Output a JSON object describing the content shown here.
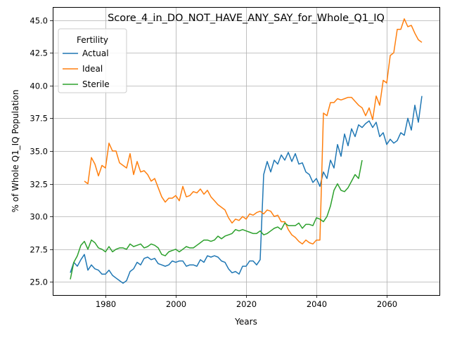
{
  "chart_data": {
    "type": "line",
    "title": "Score_4_in_DO_NOT_HAVE_ANY_SAY_for_Whole_Q1_IQ",
    "xlabel": "Years",
    "ylabel": "% of Whole Q1_IQ Population",
    "xlim": [
      1965,
      2075
    ],
    "ylim": [
      24.0,
      46.0
    ],
    "xticks": [
      1980,
      2000,
      2020,
      2040,
      2060
    ],
    "yticks": [
      25.0,
      27.5,
      30.0,
      32.5,
      35.0,
      37.5,
      40.0,
      42.5,
      45.0
    ],
    "grid": true,
    "legend": {
      "title": "Fertility",
      "location": "upper-left"
    },
    "series": [
      {
        "name": "Actual",
        "color": "#1f77b4",
        "x": [
          1970,
          1971,
          1972,
          1973,
          1974,
          1975,
          1976,
          1977,
          1978,
          1979,
          1980,
          1981,
          1982,
          1983,
          1984,
          1985,
          1986,
          1987,
          1988,
          1989,
          1990,
          1991,
          1992,
          1993,
          1994,
          1995,
          1996,
          1997,
          1998,
          1999,
          2000,
          2001,
          2002,
          2003,
          2004,
          2005,
          2006,
          2007,
          2008,
          2009,
          2010,
          2011,
          2012,
          2013,
          2014,
          2015,
          2016,
          2017,
          2018,
          2019,
          2020,
          2021,
          2022,
          2023,
          2024,
          2025,
          2026,
          2027,
          2028,
          2029,
          2030,
          2031,
          2032,
          2033,
          2034,
          2035,
          2036,
          2037,
          2038,
          2039,
          2040,
          2041,
          2042,
          2043,
          2044,
          2045,
          2046,
          2047,
          2048,
          2049,
          2050,
          2051,
          2052,
          2053,
          2054,
          2055,
          2056,
          2057,
          2058,
          2059,
          2060,
          2061,
          2062,
          2063,
          2064,
          2065,
          2066,
          2067,
          2068,
          2069,
          2070
        ],
        "values": [
          25.7,
          26.5,
          26.2,
          26.7,
          27.1,
          25.9,
          26.3,
          26.0,
          25.9,
          25.6,
          25.6,
          25.9,
          25.5,
          25.3,
          25.1,
          24.9,
          25.1,
          25.8,
          26.0,
          26.5,
          26.3,
          26.8,
          26.9,
          26.7,
          26.8,
          26.4,
          26.3,
          26.2,
          26.3,
          26.6,
          26.5,
          26.6,
          26.6,
          26.2,
          26.3,
          26.3,
          26.2,
          26.7,
          26.5,
          27.0,
          26.9,
          27.0,
          26.9,
          26.6,
          26.5,
          26.0,
          25.7,
          25.8,
          25.6,
          26.2,
          26.2,
          26.6,
          26.6,
          26.3,
          26.7,
          33.2,
          34.2,
          33.4,
          34.3,
          34.0,
          34.7,
          34.3,
          34.9,
          34.2,
          34.8,
          34.0,
          34.1,
          33.4,
          33.2,
          32.6,
          32.9,
          32.3,
          33.4,
          32.9,
          34.3,
          33.7,
          35.5,
          34.6,
          36.3,
          35.4,
          36.7,
          36.1,
          37.0,
          36.8,
          37.1,
          37.3,
          36.8,
          37.2,
          36.1,
          36.4,
          35.5,
          35.9,
          35.6,
          35.8,
          36.4,
          36.2,
          37.5,
          36.6,
          38.5,
          37.2,
          39.2
        ]
      },
      {
        "name": "Ideal",
        "color": "#ff7f0e",
        "x": [
          1974,
          1975,
          1976,
          1977,
          1978,
          1979,
          1980,
          1981,
          1982,
          1983,
          1984,
          1985,
          1986,
          1987,
          1988,
          1989,
          1990,
          1991,
          1992,
          1993,
          1994,
          1995,
          1996,
          1997,
          1998,
          1999,
          2000,
          2001,
          2002,
          2003,
          2004,
          2005,
          2006,
          2007,
          2008,
          2009,
          2010,
          2011,
          2012,
          2013,
          2014,
          2015,
          2016,
          2017,
          2018,
          2019,
          2020,
          2021,
          2022,
          2023,
          2024,
          2025,
          2026,
          2027,
          2028,
          2029,
          2030,
          2031,
          2032,
          2033,
          2034,
          2035,
          2036,
          2037,
          2038,
          2039,
          2040,
          2041,
          2042,
          2043,
          2044,
          2045,
          2046,
          2047,
          2048,
          2049,
          2050,
          2051,
          2052,
          2053,
          2054,
          2055,
          2056,
          2057,
          2058,
          2059,
          2060,
          2061,
          2062,
          2063,
          2064,
          2065,
          2066,
          2067,
          2068,
          2069,
          2070
        ],
        "values": [
          32.7,
          32.5,
          34.5,
          34.0,
          33.1,
          33.9,
          33.7,
          35.6,
          35.0,
          35.0,
          34.1,
          33.9,
          33.7,
          34.8,
          33.2,
          34.2,
          33.4,
          33.5,
          33.2,
          32.7,
          32.9,
          32.2,
          31.5,
          31.1,
          31.4,
          31.4,
          31.6,
          31.2,
          32.3,
          31.5,
          31.6,
          31.9,
          31.8,
          32.1,
          31.7,
          32.0,
          31.5,
          31.2,
          30.9,
          30.7,
          30.5,
          29.9,
          29.5,
          29.8,
          29.7,
          30.0,
          29.8,
          30.2,
          30.1,
          30.3,
          30.4,
          30.2,
          30.5,
          30.4,
          30.0,
          30.1,
          29.6,
          29.6,
          29.0,
          28.6,
          28.4,
          28.1,
          27.9,
          28.2,
          28.0,
          27.9,
          28.2,
          28.2,
          37.9,
          37.7,
          38.7,
          38.7,
          39.0,
          38.9,
          39.0,
          39.1,
          39.1,
          38.8,
          38.5,
          38.3,
          37.7,
          38.3,
          37.4,
          39.2,
          38.5,
          40.4,
          40.2,
          42.3,
          42.5,
          44.3,
          44.3,
          45.1,
          44.5,
          44.6,
          44.0,
          43.5,
          43.3
        ]
      },
      {
        "name": "Sterile",
        "color": "#2ca02c",
        "x": [
          1970,
          1971,
          1972,
          1973,
          1974,
          1975,
          1976,
          1977,
          1978,
          1979,
          1980,
          1981,
          1982,
          1983,
          1984,
          1985,
          1986,
          1987,
          1988,
          1989,
          1990,
          1991,
          1992,
          1993,
          1994,
          1995,
          1996,
          1997,
          1998,
          1999,
          2000,
          2001,
          2002,
          2003,
          2004,
          2005,
          2006,
          2007,
          2008,
          2009,
          2010,
          2011,
          2012,
          2013,
          2014,
          2015,
          2016,
          2017,
          2018,
          2019,
          2020,
          2021,
          2022,
          2023,
          2024,
          2025,
          2026,
          2027,
          2028,
          2029,
          2030,
          2031,
          2032,
          2033,
          2034,
          2035,
          2036,
          2037,
          2038,
          2039,
          2040,
          2041,
          2042,
          2043,
          2044,
          2045,
          2046,
          2047,
          2048,
          2049,
          2050,
          2051,
          2052,
          2053
        ],
        "values": [
          25.2,
          26.5,
          27.0,
          27.8,
          28.1,
          27.5,
          28.2,
          28.0,
          27.6,
          27.5,
          27.3,
          27.7,
          27.3,
          27.5,
          27.6,
          27.6,
          27.5,
          27.9,
          27.7,
          27.8,
          27.9,
          27.6,
          27.7,
          27.9,
          27.8,
          27.6,
          27.1,
          27.0,
          27.3,
          27.4,
          27.5,
          27.3,
          27.5,
          27.7,
          27.6,
          27.6,
          27.8,
          28.0,
          28.2,
          28.2,
          28.1,
          28.2,
          28.5,
          28.3,
          28.5,
          28.6,
          28.7,
          29.0,
          28.9,
          29.0,
          28.9,
          28.8,
          28.7,
          28.7,
          28.9,
          28.6,
          28.7,
          28.9,
          29.1,
          29.2,
          29.0,
          29.5,
          29.3,
          29.3,
          29.3,
          29.5,
          29.1,
          29.4,
          29.4,
          29.3,
          29.9,
          29.8,
          29.6,
          30.0,
          30.8,
          32.0,
          32.5,
          32.0,
          31.9,
          32.2,
          32.7,
          33.2,
          32.9,
          34.3
        ]
      }
    ]
  }
}
